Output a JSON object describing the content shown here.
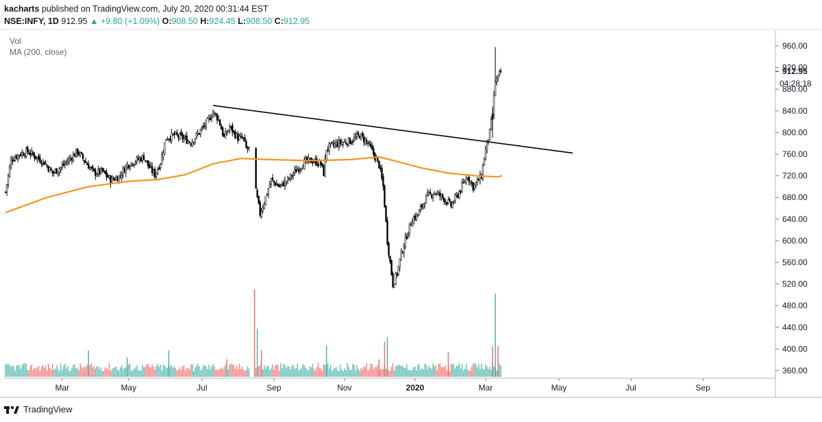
{
  "header": {
    "author": "kacharts",
    "published": "published on TradingView.com, July 20, 2020 00:31:44 EST",
    "symbol": "NSE:INFY, 1D",
    "last": "912.95",
    "change": "+9.80 (+1.09%)",
    "o_label": "O:",
    "o": "908.50",
    "h_label": "H:",
    "h": "924.45",
    "l_label": "L:",
    "l": "908.50",
    "c_label": "C:",
    "c": "912.95"
  },
  "legend": {
    "vol": "Vol",
    "ma": "MA (200, close)"
  },
  "footer": {
    "brand": "TradingView"
  },
  "colors": {
    "up": "#26a69a",
    "down": "#ef5350",
    "ma": "#f7931e",
    "trend": "#000000",
    "candle": "#000000"
  },
  "chart_data": {
    "type": "candlestick",
    "title": "NSE:INFY, 1D",
    "y_ticks": [
      960,
      920,
      880,
      840,
      800,
      760,
      720,
      680,
      640,
      600,
      560,
      520,
      480,
      440,
      400,
      360
    ],
    "y_range": [
      345,
      975
    ],
    "x_ticks": [
      "Mar",
      "May",
      "Jul",
      "Sep",
      "Nov",
      "2020",
      "Mar",
      "May",
      "Jul",
      "Sep"
    ],
    "last_price": "912.95",
    "countdown": "04:28:18",
    "price_path": [
      [
        0,
        690
      ],
      [
        4,
        750
      ],
      [
        10,
        760
      ],
      [
        16,
        765
      ],
      [
        22,
        755
      ],
      [
        28,
        745
      ],
      [
        34,
        725
      ],
      [
        40,
        735
      ],
      [
        46,
        750
      ],
      [
        52,
        765
      ],
      [
        58,
        745
      ],
      [
        64,
        725
      ],
      [
        70,
        728
      ],
      [
        76,
        712
      ],
      [
        82,
        718
      ],
      [
        88,
        740
      ],
      [
        94,
        748
      ],
      [
        100,
        755
      ],
      [
        104,
        735
      ],
      [
        108,
        722
      ],
      [
        112,
        745
      ],
      [
        116,
        790
      ],
      [
        122,
        795
      ],
      [
        128,
        790
      ],
      [
        134,
        782
      ],
      [
        140,
        800
      ],
      [
        146,
        820
      ],
      [
        150,
        838
      ],
      [
        154,
        825
      ],
      [
        158,
        790
      ],
      [
        162,
        810
      ],
      [
        168,
        790
      ],
      [
        172,
        788
      ],
      [
        174,
        770
      ],
      [
        178,
        770
      ],
      [
        181,
        690
      ],
      [
        184,
        650
      ],
      [
        188,
        680
      ],
      [
        192,
        712
      ],
      [
        198,
        700
      ],
      [
        204,
        712
      ],
      [
        210,
        730
      ],
      [
        216,
        745
      ],
      [
        222,
        748
      ],
      [
        228,
        742
      ],
      [
        230,
        725
      ],
      [
        232,
        770
      ],
      [
        238,
        778
      ],
      [
        244,
        782
      ],
      [
        250,
        785
      ],
      [
        256,
        795
      ],
      [
        262,
        780
      ],
      [
        266,
        760
      ],
      [
        270,
        740
      ],
      [
        273,
        700
      ],
      [
        276,
        600
      ],
      [
        278,
        560
      ],
      [
        280,
        520
      ],
      [
        283,
        540
      ],
      [
        286,
        575
      ],
      [
        290,
        610
      ],
      [
        294,
        640
      ],
      [
        298,
        648
      ],
      [
        304,
        680
      ],
      [
        310,
        690
      ],
      [
        316,
        680
      ],
      [
        322,
        665
      ],
      [
        328,
        690
      ],
      [
        334,
        720
      ],
      [
        338,
        700
      ],
      [
        342,
        712
      ],
      [
        344,
        720
      ],
      [
        346,
        755
      ],
      [
        348,
        780
      ],
      [
        350,
        800
      ],
      [
        352,
        835
      ],
      [
        354,
        895
      ],
      [
        356,
        900
      ],
      [
        358,
        912.95
      ]
    ],
    "ma200_path": [
      [
        0,
        652
      ],
      [
        30,
        680
      ],
      [
        60,
        700
      ],
      [
        90,
        710
      ],
      [
        110,
        713
      ],
      [
        130,
        722
      ],
      [
        150,
        742
      ],
      [
        170,
        752
      ],
      [
        190,
        750
      ],
      [
        220,
        748
      ],
      [
        250,
        750
      ],
      [
        270,
        755
      ],
      [
        285,
        745
      ],
      [
        300,
        735
      ],
      [
        320,
        725
      ],
      [
        340,
        720
      ],
      [
        356,
        718
      ],
      [
        359,
        720
      ]
    ],
    "trendline": {
      "from": [
        150,
        850
      ],
      "to": [
        410,
        762
      ]
    },
    "volume_spikes": [
      {
        "x": 60,
        "v": 0.3,
        "up": true
      },
      {
        "x": 88,
        "v": 0.22,
        "up": true
      },
      {
        "x": 118,
        "v": 0.3,
        "up": true
      },
      {
        "x": 160,
        "v": 0.2,
        "up": false
      },
      {
        "x": 180,
        "v": 1.0,
        "up": false
      },
      {
        "x": 182,
        "v": 0.55,
        "up": true
      },
      {
        "x": 185,
        "v": 0.3,
        "up": false
      },
      {
        "x": 232,
        "v": 0.35,
        "up": true
      },
      {
        "x": 270,
        "v": 0.2,
        "up": false
      },
      {
        "x": 274,
        "v": 0.4,
        "up": false
      },
      {
        "x": 276,
        "v": 0.45,
        "up": true
      },
      {
        "x": 320,
        "v": 0.28,
        "up": false
      },
      {
        "x": 352,
        "v": 0.35,
        "up": false
      },
      {
        "x": 354,
        "v": 0.95,
        "up": true
      },
      {
        "x": 356,
        "v": 0.35,
        "up": false
      }
    ]
  }
}
